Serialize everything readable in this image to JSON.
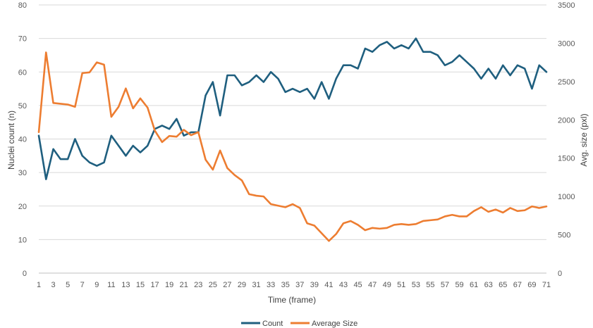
{
  "chart_data": {
    "type": "line",
    "title": "",
    "xlabel": "Time (frame)",
    "ylabel": "Nuclei count (n)",
    "y2label": "Avg. size (pxl)",
    "x": [
      1,
      2,
      3,
      4,
      5,
      6,
      7,
      8,
      9,
      10,
      11,
      12,
      13,
      14,
      15,
      16,
      17,
      18,
      19,
      20,
      21,
      22,
      23,
      24,
      25,
      26,
      27,
      28,
      29,
      30,
      31,
      32,
      33,
      34,
      35,
      36,
      37,
      38,
      39,
      40,
      41,
      42,
      43,
      44,
      45,
      46,
      47,
      48,
      49,
      50,
      51,
      52,
      53,
      54,
      55,
      56,
      57,
      58,
      59,
      60,
      61,
      62,
      63,
      64,
      65,
      66,
      67,
      68,
      69,
      70,
      71
    ],
    "x_tick_labels": [
      "1",
      "3",
      "5",
      "7",
      "9",
      "11",
      "13",
      "15",
      "17",
      "19",
      "21",
      "23",
      "25",
      "27",
      "29",
      "31",
      "33",
      "35",
      "37",
      "39",
      "41",
      "43",
      "45",
      "47",
      "49",
      "51",
      "53",
      "55",
      "57",
      "59",
      "61",
      "63",
      "65",
      "67",
      "69",
      "71"
    ],
    "ylim": [
      0,
      80
    ],
    "y_ticks": [
      "0",
      "10",
      "20",
      "30",
      "40",
      "50",
      "60",
      "70",
      "80"
    ],
    "y2lim": [
      0,
      3500
    ],
    "y2_ticks": [
      "0",
      "500",
      "1000",
      "1500",
      "2000",
      "2500",
      "3000",
      "3500"
    ],
    "grid": true,
    "legend_position": "bottom",
    "series": [
      {
        "name": "Count",
        "axis": "left",
        "color": "#1f5f7f",
        "values": [
          41,
          28,
          37,
          34,
          34,
          40,
          35,
          33,
          32,
          33,
          41,
          38,
          35,
          38,
          36,
          38,
          43,
          44,
          43,
          46,
          41,
          42,
          42,
          53,
          57,
          47,
          59,
          59,
          56,
          57,
          59,
          57,
          60,
          58,
          54,
          55,
          54,
          55,
          52,
          57,
          52,
          58,
          62,
          62,
          61,
          67,
          66,
          68,
          69,
          67,
          68,
          67,
          70,
          66,
          66,
          65,
          62,
          63,
          65,
          63,
          61,
          58,
          61,
          58,
          62,
          59,
          62,
          61,
          55,
          62,
          60
        ]
      },
      {
        "name": "Average Size",
        "axis": "right",
        "color": "#ed7d31",
        "values": [
          1840,
          2880,
          2220,
          2210,
          2200,
          2170,
          2610,
          2620,
          2750,
          2720,
          2040,
          2170,
          2410,
          2150,
          2280,
          2160,
          1860,
          1710,
          1790,
          1780,
          1870,
          1800,
          1840,
          1480,
          1350,
          1600,
          1370,
          1280,
          1210,
          1030,
          1010,
          1000,
          900,
          880,
          860,
          900,
          850,
          650,
          620,
          520,
          420,
          510,
          650,
          680,
          630,
          560,
          590,
          580,
          590,
          630,
          640,
          630,
          640,
          680,
          690,
          700,
          740,
          760,
          740,
          740,
          810,
          860,
          800,
          830,
          790,
          850,
          810,
          820,
          870,
          850,
          870
        ]
      }
    ]
  }
}
